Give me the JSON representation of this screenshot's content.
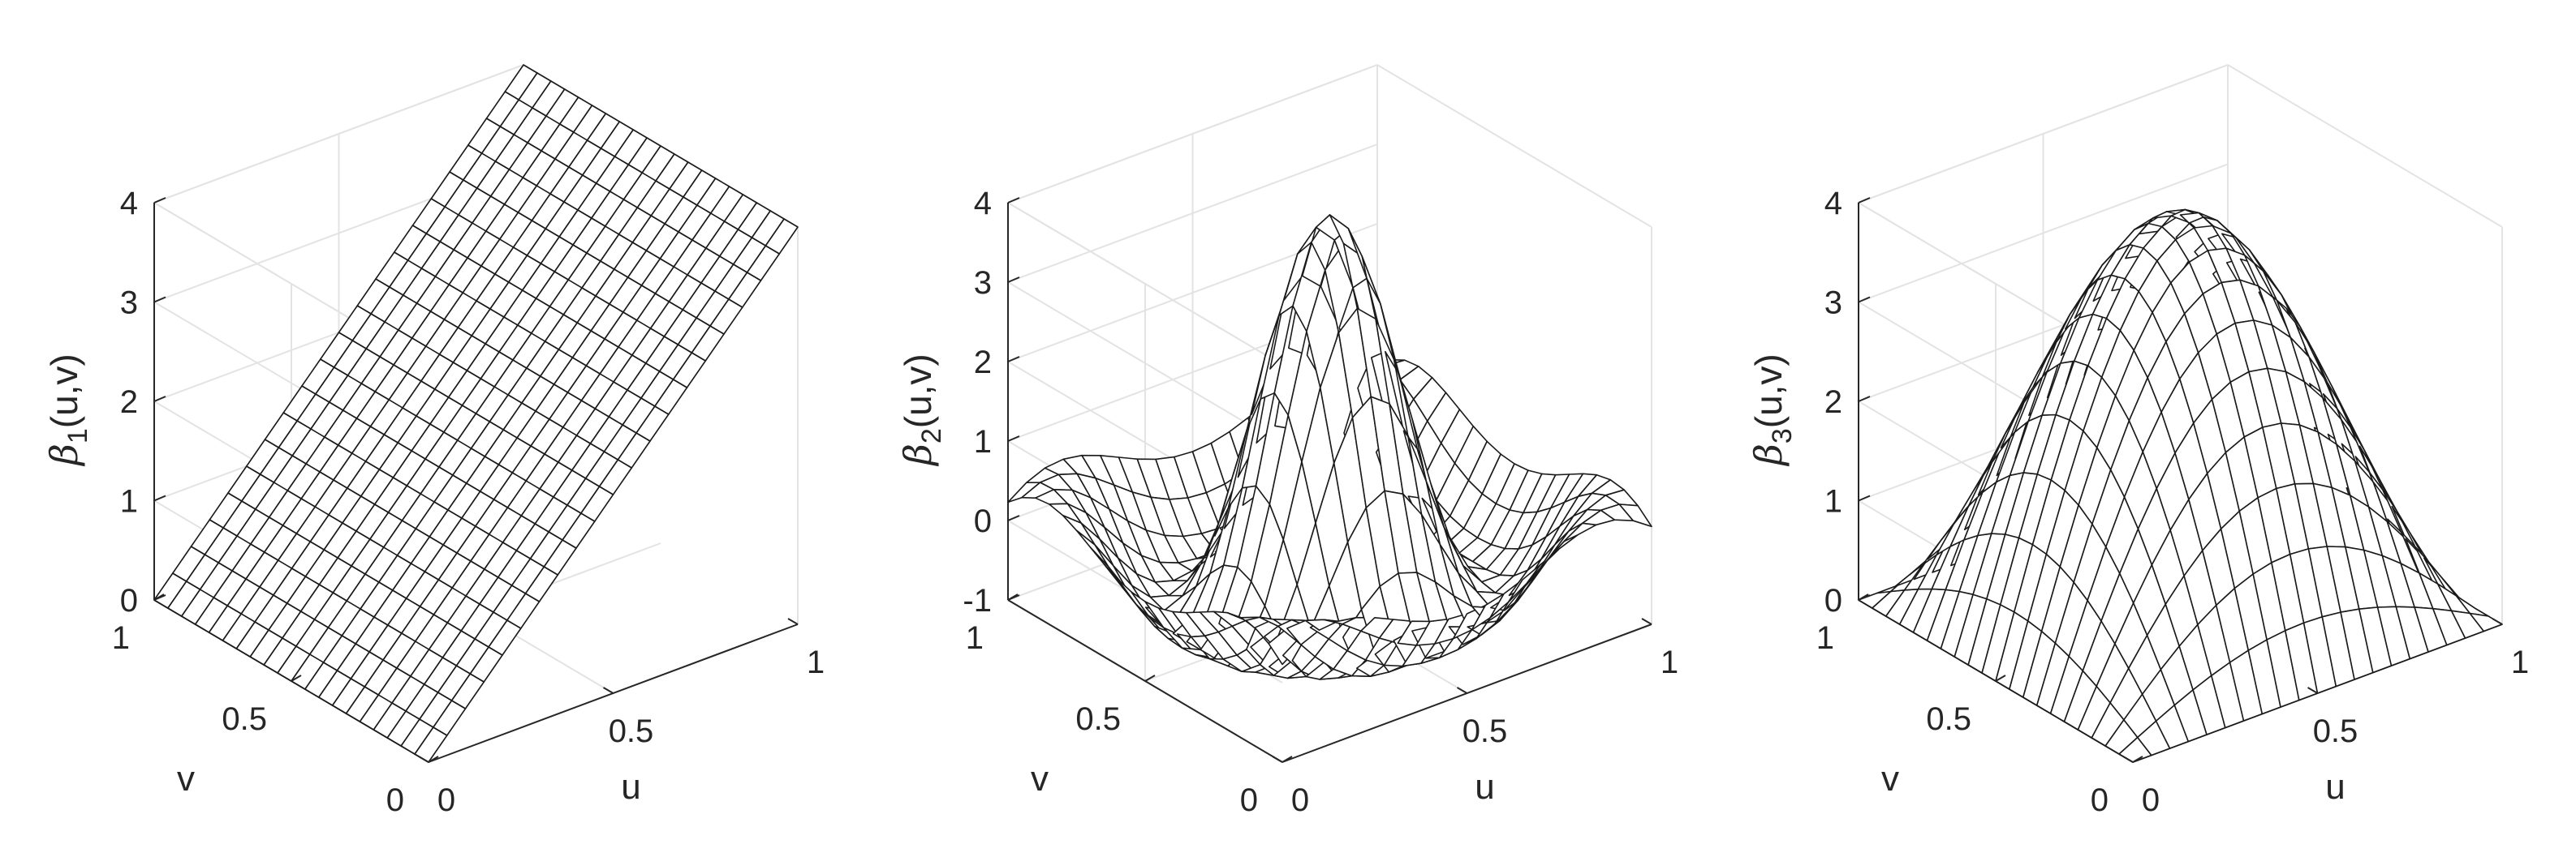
{
  "chart_data": [
    {
      "type": "surface",
      "function": "beta_1(u,v) = 4u",
      "zlabel_greek": "β",
      "zlabel_sub": "1",
      "zlabel_rest": "(u,v)",
      "xlabel": "u",
      "ylabel": "v",
      "xlim": [
        0,
        1
      ],
      "ylim": [
        0,
        1
      ],
      "zlim": [
        0,
        4
      ],
      "xticks": [
        "0",
        "0.5",
        "1"
      ],
      "yticks": [
        "0",
        "0.5",
        "1"
      ],
      "zticks": [
        "0",
        "1",
        "2",
        "3",
        "4"
      ],
      "grid_lines": 21,
      "grid": true
    },
    {
      "type": "surface",
      "function": "beta_2(u,v) = 4·sinc(radial distance from (0.5,0.5))",
      "zlabel_greek": "β",
      "zlabel_sub": "2",
      "zlabel_rest": "(u,v)",
      "xlabel": "u",
      "ylabel": "v",
      "xlim": [
        0,
        1
      ],
      "ylim": [
        0,
        1
      ],
      "zlim": [
        -1,
        4
      ],
      "xticks": [
        "0",
        "0.5",
        "1"
      ],
      "yticks": [
        "0",
        "0.5",
        "1"
      ],
      "zticks": [
        "-1",
        "0",
        "1",
        "2",
        "3",
        "4"
      ],
      "grid_lines": 21,
      "grid": true
    },
    {
      "type": "surface",
      "function": "beta_3(u,v) = 4·sin(πu)·sin(πv)",
      "zlabel_greek": "β",
      "zlabel_sub": "3",
      "zlabel_rest": "(u,v)",
      "xlabel": "u",
      "ylabel": "v",
      "xlim": [
        0,
        1
      ],
      "ylim": [
        0,
        1
      ],
      "zlim": [
        0,
        4
      ],
      "xticks": [
        "0",
        "0.5",
        "1"
      ],
      "yticks": [
        "0",
        "0.5",
        "1"
      ],
      "zticks": [
        "0",
        "1",
        "2",
        "3",
        "4"
      ],
      "grid_lines": 21,
      "grid": true
    }
  ]
}
